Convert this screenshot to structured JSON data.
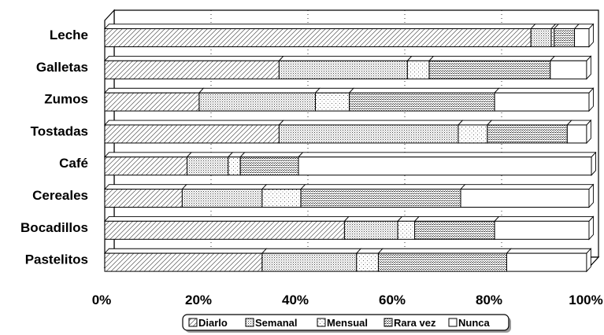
{
  "chart_data": {
    "type": "bar",
    "orientation": "horizontal",
    "stacked": "percent",
    "categories": [
      "Leche",
      "Galletas",
      "Zumos",
      "Tostadas",
      "Café",
      "Cereales",
      "Bocadillos",
      "Pastelitos"
    ],
    "series": [
      {
        "name": "Diarlo",
        "values": [
          88,
          36,
          19.5,
          36,
          17,
          16,
          49.5,
          32.5
        ],
        "pattern": "diagonal"
      },
      {
        "name": "Semanal",
        "values": [
          4.2,
          26.5,
          24,
          37,
          8.5,
          16.5,
          11,
          19.5
        ],
        "pattern": "dense-dots"
      },
      {
        "name": "Mensual",
        "values": [
          0.6,
          4.5,
          7,
          6,
          2.5,
          8,
          3.5,
          4.5
        ],
        "pattern": "sparse-dots"
      },
      {
        "name": "Rara vez",
        "values": [
          4.2,
          25,
          30,
          16.5,
          12,
          33,
          16.5,
          26.5
        ],
        "pattern": "grid"
      },
      {
        "name": "Nunca",
        "values": [
          3,
          7.5,
          19.5,
          4,
          60.5,
          26.5,
          19.5,
          16.5
        ],
        "pattern": "blank"
      }
    ],
    "xaxis": {
      "min": 0,
      "max": 100,
      "ticks": [
        "0%",
        "20%",
        "40%",
        "60%",
        "80%",
        "100%"
      ]
    },
    "legend_position": "bottom",
    "grid": true,
    "three_d": true
  }
}
